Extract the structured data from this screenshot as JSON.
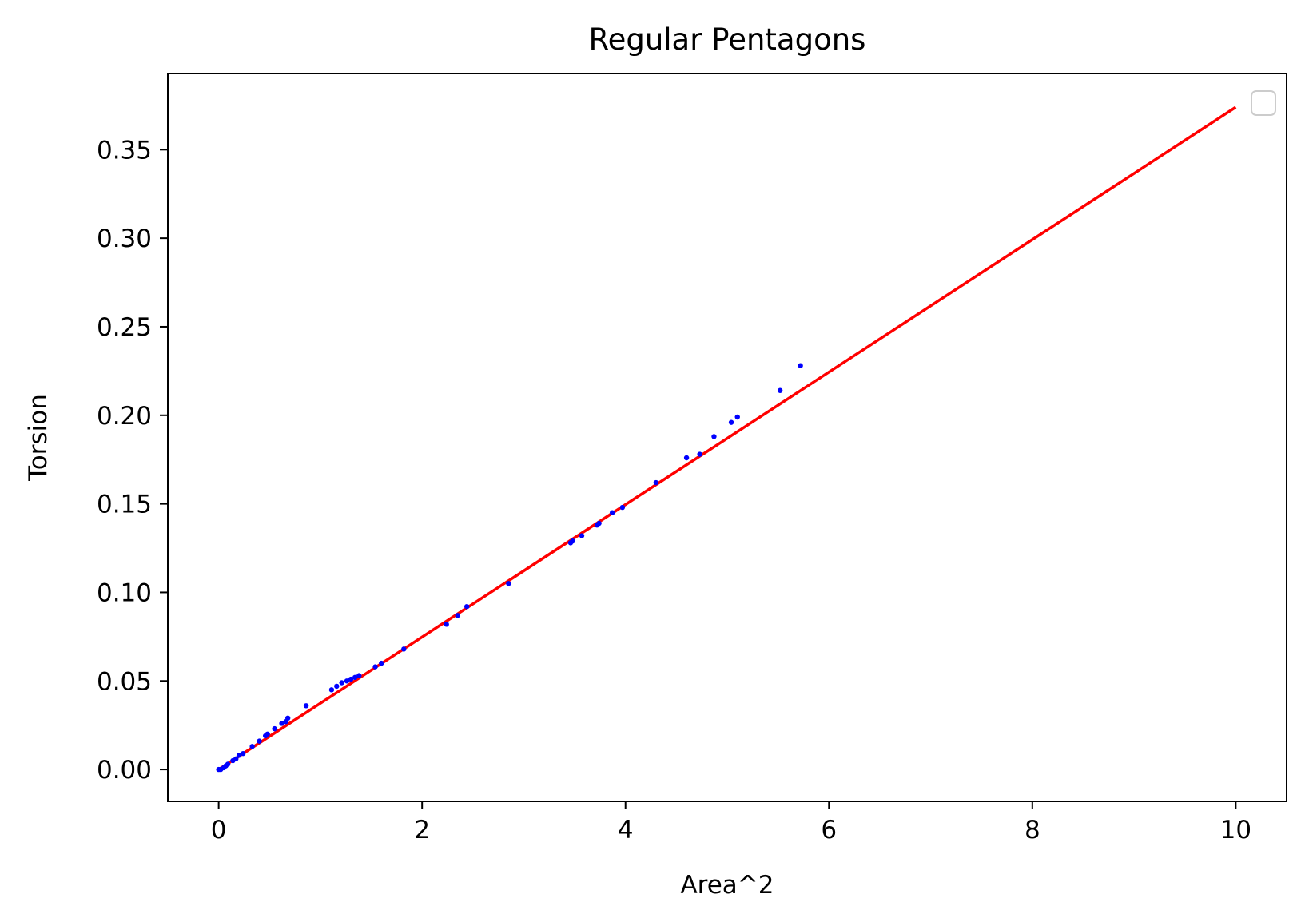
{
  "chart_data": {
    "type": "scatter",
    "title": "Regular Pentagons",
    "xlabel": "Area^2",
    "ylabel": "Torsion",
    "xlim": [
      -0.5,
      10.5
    ],
    "ylim": [
      -0.018,
      0.393
    ],
    "xticks": [
      0,
      2,
      4,
      6,
      8,
      10
    ],
    "xtick_labels": [
      "0",
      "2",
      "4",
      "6",
      "8",
      "10"
    ],
    "yticks": [
      0.0,
      0.05,
      0.1,
      0.15,
      0.2,
      0.25,
      0.3,
      0.35
    ],
    "ytick_labels": [
      "0.00",
      "0.05",
      "0.10",
      "0.15",
      "0.20",
      "0.25",
      "0.30",
      "0.35"
    ],
    "grid": false,
    "legend": {
      "placement": "upper right",
      "entries": []
    },
    "colors": {
      "points": "#0000ff",
      "fit_line": "#ff0000",
      "axes": "#000000"
    },
    "series": [
      {
        "kind": "scatter",
        "color": "#0000ff",
        "x": [
          0.0,
          0.02,
          0.05,
          0.07,
          0.09,
          0.14,
          0.17,
          0.2,
          0.24,
          0.33,
          0.4,
          0.46,
          0.48,
          0.55,
          0.62,
          0.66,
          0.68,
          0.86,
          1.11,
          1.16,
          1.21,
          1.26,
          1.3,
          1.34,
          1.38,
          1.54,
          1.6,
          1.82,
          2.24,
          2.35,
          2.44,
          2.85,
          3.46,
          3.48,
          3.57,
          3.72,
          3.74,
          3.87,
          3.97,
          4.3,
          4.6,
          4.73,
          4.87,
          5.04,
          5.1,
          5.52,
          5.72
        ],
        "y": [
          0.0,
          0.0,
          0.001,
          0.002,
          0.003,
          0.005,
          0.006,
          0.008,
          0.009,
          0.013,
          0.016,
          0.019,
          0.02,
          0.023,
          0.026,
          0.027,
          0.029,
          0.036,
          0.045,
          0.047,
          0.049,
          0.05,
          0.051,
          0.052,
          0.053,
          0.058,
          0.06,
          0.068,
          0.082,
          0.087,
          0.092,
          0.105,
          0.128,
          0.129,
          0.132,
          0.138,
          0.139,
          0.145,
          0.148,
          0.162,
          0.176,
          0.178,
          0.188,
          0.196,
          0.199,
          0.214,
          0.228
        ]
      },
      {
        "kind": "line",
        "color": "#ff0000",
        "x": [
          0,
          10
        ],
        "y": [
          0.0,
          0.374
        ]
      }
    ]
  }
}
